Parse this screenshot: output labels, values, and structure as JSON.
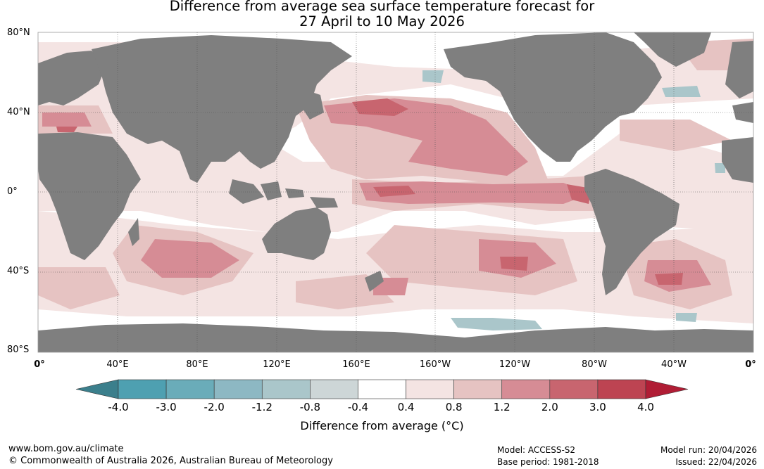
{
  "title": {
    "line1": "Difference from average sea surface temperature forecast for",
    "line2": "27 April to 10 May 2026"
  },
  "map": {
    "lat_labels": [
      "80°N",
      "40°N",
      "0°",
      "40°S",
      "80°S"
    ],
    "lon_labels": [
      "0°",
      "40°E",
      "80°E",
      "120°E",
      "160°E",
      "160°W",
      "120°W",
      "80°W",
      "40°W",
      "0°"
    ],
    "colors": {
      "land": "#7f7f7f",
      "ocean_neutral": "#ffffff",
      "grid": "#555555"
    }
  },
  "colorbar": {
    "tick_labels": [
      "-4.0",
      "-3.0",
      "-2.0",
      "-1.2",
      "-0.8",
      "-0.4",
      "0.4",
      "0.8",
      "1.2",
      "2.0",
      "3.0",
      "4.0"
    ],
    "colors": [
      "#3b7f8c",
      "#4ea0b1",
      "#6aacb9",
      "#8db8c3",
      "#aac6ca",
      "#cdd6d7",
      "#ffffff",
      "#f4e4e3",
      "#e6c3c2",
      "#d68c95",
      "#c8656f",
      "#bd4452",
      "#b01d35"
    ],
    "label": "Difference from average (°C)"
  },
  "footer": {
    "website": "www.bom.gov.au/climate",
    "copyright": "© Commonwealth of Australia 2026, Australian Bureau of Meteorology",
    "model": "Model: ACCESS-S2",
    "base_period": "Base period: 1981-2018",
    "model_run": "Model run: 20/04/2026",
    "issued": "Issued: 22/04/2026"
  }
}
